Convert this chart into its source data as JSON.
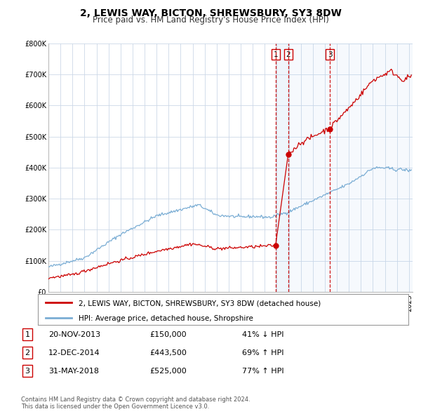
{
  "title": "2, LEWIS WAY, BICTON, SHREWSBURY, SY3 8DW",
  "subtitle": "Price paid vs. HM Land Registry's House Price Index (HPI)",
  "xlim": [
    1995,
    2025.3
  ],
  "ylim": [
    0,
    800000
  ],
  "yticks": [
    0,
    100000,
    200000,
    300000,
    400000,
    500000,
    600000,
    700000,
    800000
  ],
  "ytick_labels": [
    "£0",
    "£100K",
    "£200K",
    "£300K",
    "£400K",
    "£500K",
    "£600K",
    "£700K",
    "£800K"
  ],
  "hpi_color": "#7aadd4",
  "price_color": "#cc0000",
  "shade_color": "#ddeeff",
  "vline_color": "#cc0000",
  "background_color": "#ffffff",
  "grid_color": "#ccd8e8",
  "sale_points": [
    {
      "year": 2013.9,
      "price": 150000,
      "label": "1"
    },
    {
      "year": 2014.95,
      "price": 443500,
      "label": "2"
    },
    {
      "year": 2018.42,
      "price": 525000,
      "label": "3"
    }
  ],
  "legend_entries": [
    {
      "label": "2, LEWIS WAY, BICTON, SHREWSBURY, SY3 8DW (detached house)",
      "color": "#cc0000"
    },
    {
      "label": "HPI: Average price, detached house, Shropshire",
      "color": "#7aadd4"
    }
  ],
  "table_rows": [
    {
      "num": "1",
      "date": "20-NOV-2013",
      "price": "£150,000",
      "hpi": "41% ↓ HPI"
    },
    {
      "num": "2",
      "date": "12-DEC-2014",
      "price": "£443,500",
      "hpi": "69% ↑ HPI"
    },
    {
      "num": "3",
      "date": "31-MAY-2018",
      "price": "£525,000",
      "hpi": "77% ↑ HPI"
    }
  ],
  "footnote1": "Contains HM Land Registry data © Crown copyright and database right 2024.",
  "footnote2": "This data is licensed under the Open Government Licence v3.0.",
  "title_fontsize": 10,
  "subtitle_fontsize": 8.5,
  "tick_fontsize": 7,
  "legend_fontsize": 7.5,
  "table_fontsize": 8
}
